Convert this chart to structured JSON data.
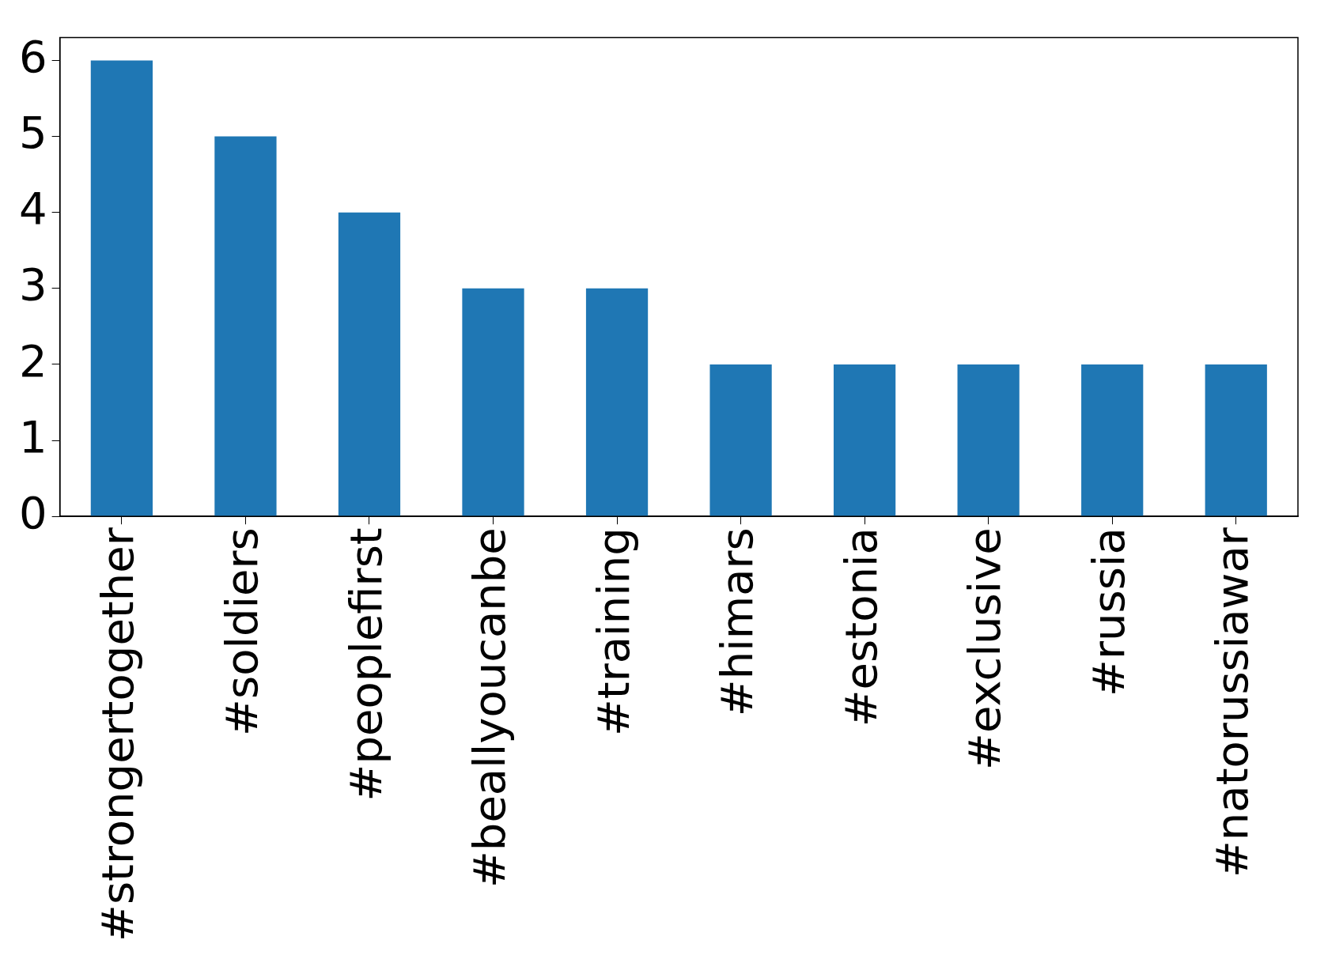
{
  "chart_data": {
    "type": "bar",
    "categories": [
      "#strongertogether",
      "#soldiers",
      "#peoplefirst",
      "#beallyoucanbe",
      "#training",
      "#himars",
      "#estonia",
      "#exclusive",
      "#russia",
      "#natorussiawar"
    ],
    "values": [
      6,
      5,
      4,
      3,
      3,
      2,
      2,
      2,
      2,
      2
    ],
    "color": "#1f77b4",
    "ylim": [
      0,
      6.3
    ],
    "yticks": [
      0,
      1,
      2,
      3,
      4,
      5,
      6
    ]
  }
}
